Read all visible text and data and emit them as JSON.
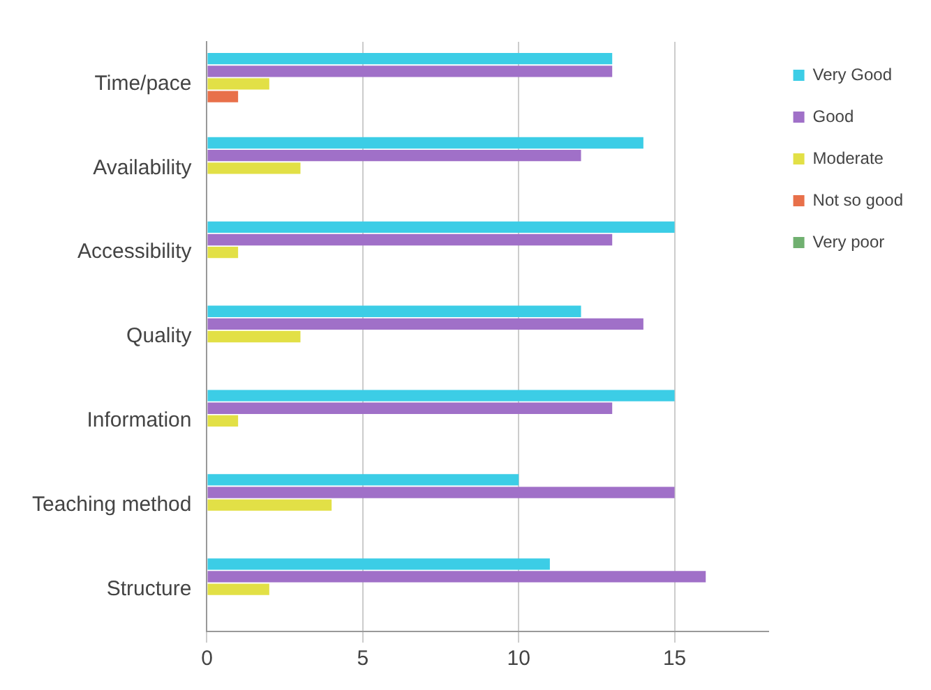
{
  "chart_data": {
    "type": "bar",
    "orientation": "horizontal",
    "categories": [
      "Time/pace",
      "Availability",
      "Accessibility",
      "Quality",
      "Information",
      "Teaching method",
      "Structure"
    ],
    "series": [
      {
        "name": "Very Good",
        "color": "#3ccde6",
        "values": [
          13,
          14,
          15,
          12,
          15,
          10,
          11
        ]
      },
      {
        "name": "Good",
        "color": "#a070c8",
        "values": [
          13,
          12,
          13,
          14,
          13,
          15,
          16
        ]
      },
      {
        "name": "Moderate",
        "color": "#e2e046",
        "values": [
          2,
          3,
          1,
          3,
          1,
          4,
          2
        ]
      },
      {
        "name": "Not so good",
        "color": "#e8704a",
        "values": [
          1,
          0,
          0,
          0,
          0,
          0,
          0
        ]
      },
      {
        "name": "Very poor",
        "color": "#70b070",
        "values": [
          0,
          0,
          0,
          0,
          0,
          0,
          0
        ]
      }
    ],
    "xlim": [
      0,
      18
    ],
    "xticks": [
      0,
      5,
      10,
      15
    ],
    "grid": "x",
    "legend": "top right"
  }
}
